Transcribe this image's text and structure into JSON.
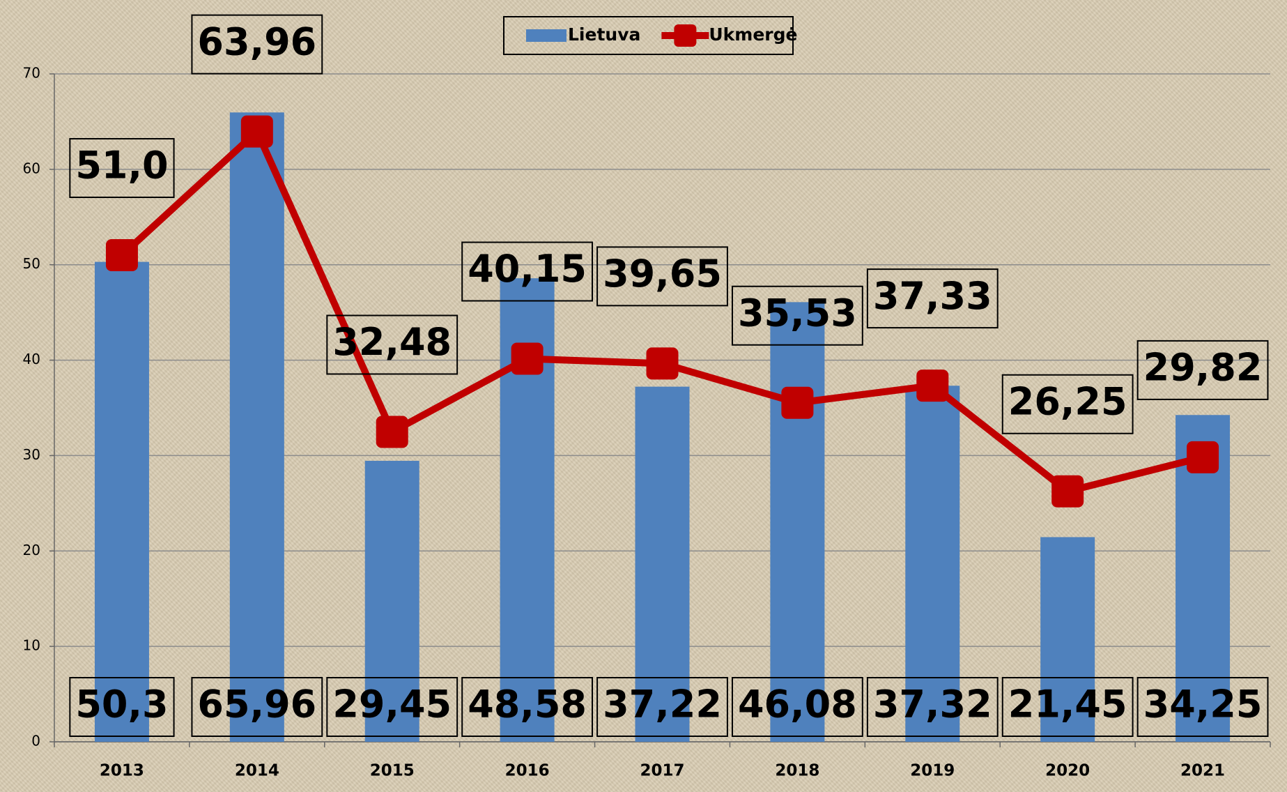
{
  "chart_data": {
    "type": "combo",
    "categories": [
      "2013",
      "2014",
      "2015",
      "2016",
      "2017",
      "2018",
      "2019",
      "2020",
      "2021"
    ],
    "series": [
      {
        "name": "Lietuva",
        "type": "bar",
        "color": "#4f81bd",
        "values": [
          50.3,
          65.96,
          29.45,
          48.58,
          37.22,
          46.08,
          37.32,
          21.45,
          34.25
        ],
        "value_labels": [
          "50,3",
          "65,96",
          "29,45",
          "48,58",
          "37,22",
          "46,08",
          "37,32",
          "21,45",
          "34,25"
        ]
      },
      {
        "name": "Ukmergė",
        "type": "line",
        "color": "#c00000",
        "values": [
          51.0,
          63.96,
          32.48,
          40.15,
          39.65,
          35.53,
          37.33,
          26.25,
          29.82
        ],
        "value_labels": [
          "51,0",
          "63,96",
          "32,48",
          "40,15",
          "39,65",
          "35,53",
          "37,33",
          "26,25",
          "29,82"
        ]
      }
    ],
    "ylim": [
      0,
      70
    ],
    "yticks": [
      0,
      10,
      20,
      30,
      40,
      50,
      60,
      70
    ],
    "grid": true,
    "legend": "top"
  }
}
